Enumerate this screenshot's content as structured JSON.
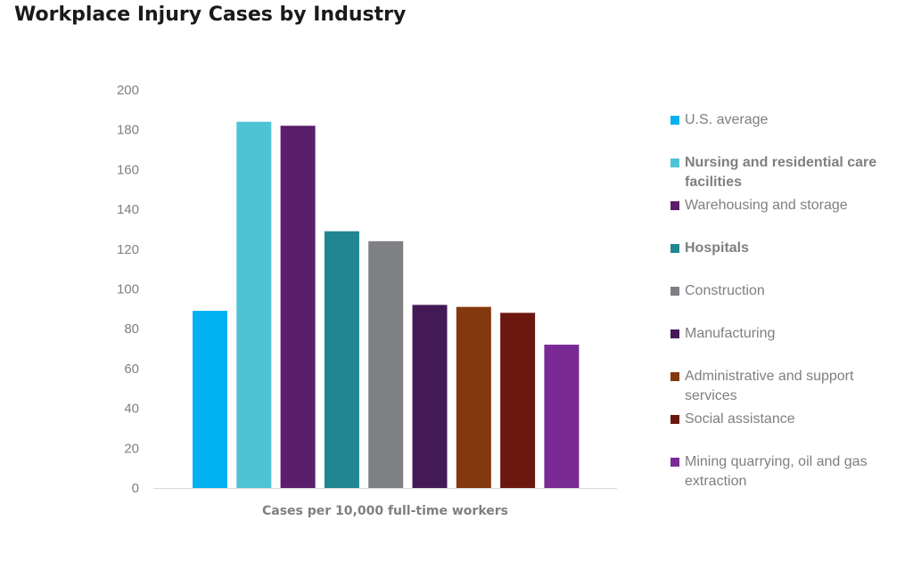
{
  "title": "Workplace Injury Cases by Industry",
  "chart_data": {
    "type": "bar",
    "title": "Workplace Injury Cases by Industry",
    "xlabel": "Cases per 10,000 full-time workers",
    "ylabel": "",
    "ylim": [
      0,
      200
    ],
    "yticks": [
      0,
      20,
      40,
      60,
      80,
      100,
      120,
      140,
      160,
      180,
      200
    ],
    "grid": false,
    "legend_position": "right",
    "categories": [
      "U.S. average",
      "Nursing and residential care facilities",
      "Warehousing and storage",
      "Hospitals",
      "Construction",
      "Manufacturing",
      "Administrative and support services",
      "Social assistance",
      "Mining quarrying, oil and gas extraction"
    ],
    "values": [
      89,
      184,
      182,
      129,
      124,
      92,
      91,
      88,
      72
    ],
    "colors": [
      "#00b0f0",
      "#4fc3d6",
      "#5a1e6b",
      "#218691",
      "#7f8084",
      "#441a56",
      "#84380d",
      "#6b1710",
      "#792a94"
    ],
    "legend_bold": [
      false,
      true,
      false,
      true,
      false,
      false,
      false,
      false,
      false
    ]
  }
}
